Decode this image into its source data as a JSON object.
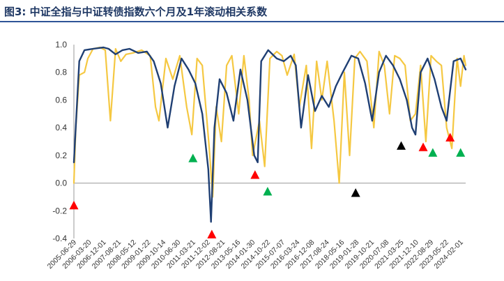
{
  "title": "图3: 中证全指与中证转债指数六个月及1年滚动相关系数",
  "chart_data": {
    "type": "line",
    "ylim": [
      -0.4,
      1.0
    ],
    "yticks": [
      "1.0",
      "0.8",
      "0.6",
      "0.4",
      "0.2",
      "0.0",
      "-0.2",
      "-0.4"
    ],
    "ytick_values": [
      1.0,
      0.8,
      0.6,
      0.4,
      0.2,
      0.0,
      -0.2,
      -0.4
    ],
    "x_start": "2005-06-29",
    "x_end": "2024-04-30",
    "xticks": [
      "2005-06-29",
      "2006-03-20",
      "2006-12-01",
      "2007-08-21",
      "2008-05-12",
      "2009-01-22",
      "2009-10-14",
      "2010-06-30",
      "2011-03-21",
      "2011-12-02",
      "2012-08-21",
      "2013-05-16",
      "2014-01-30",
      "2014-10-22",
      "2015-07-07",
      "2016-03-24",
      "2016-12-08",
      "2017-08-24",
      "2018-05-16",
      "2019-01-28",
      "2019-10-21",
      "2020-07-08",
      "2021-03-25",
      "2021-12-10",
      "2022-08-29",
      "2023-05-22",
      "2024-02-01"
    ],
    "grid": false,
    "legend": "none",
    "series": [
      {
        "color": "#1f3f73",
        "points": [
          [
            "2005-06-29",
            0.15
          ],
          [
            "2005-10-01",
            0.88
          ],
          [
            "2006-01-01",
            0.96
          ],
          [
            "2006-06-01",
            0.97
          ],
          [
            "2006-12-01",
            0.98
          ],
          [
            "2007-03-01",
            0.97
          ],
          [
            "2007-07-01",
            0.93
          ],
          [
            "2007-11-01",
            0.96
          ],
          [
            "2008-03-01",
            0.97
          ],
          [
            "2008-08-01",
            0.94
          ],
          [
            "2009-01-01",
            0.95
          ],
          [
            "2009-05-01",
            0.88
          ],
          [
            "2009-09-01",
            0.72
          ],
          [
            "2010-01-01",
            0.4
          ],
          [
            "2010-05-01",
            0.7
          ],
          [
            "2010-09-01",
            0.9
          ],
          [
            "2011-01-01",
            0.82
          ],
          [
            "2011-05-01",
            0.72
          ],
          [
            "2011-09-01",
            0.5
          ],
          [
            "2011-12-15",
            0.1
          ],
          [
            "2012-02-01",
            -0.28
          ],
          [
            "2012-04-01",
            0.4
          ],
          [
            "2012-07-01",
            0.75
          ],
          [
            "2012-11-01",
            0.65
          ],
          [
            "2013-03-01",
            0.45
          ],
          [
            "2013-07-01",
            0.82
          ],
          [
            "2013-11-01",
            0.6
          ],
          [
            "2014-03-01",
            0.2
          ],
          [
            "2014-05-01",
            0.15
          ],
          [
            "2014-07-01",
            0.88
          ],
          [
            "2014-11-01",
            0.96
          ],
          [
            "2015-04-01",
            0.9
          ],
          [
            "2015-08-01",
            0.88
          ],
          [
            "2015-12-01",
            0.92
          ],
          [
            "2016-03-01",
            0.85
          ],
          [
            "2016-06-01",
            0.4
          ],
          [
            "2016-10-01",
            0.78
          ],
          [
            "2017-02-01",
            0.52
          ],
          [
            "2017-06-01",
            0.63
          ],
          [
            "2017-10-01",
            0.55
          ],
          [
            "2018-02-01",
            0.7
          ],
          [
            "2018-06-01",
            0.8
          ],
          [
            "2018-11-01",
            0.92
          ],
          [
            "2019-03-01",
            0.9
          ],
          [
            "2019-07-01",
            0.72
          ],
          [
            "2019-11-01",
            0.45
          ],
          [
            "2020-03-01",
            0.8
          ],
          [
            "2020-07-01",
            0.92
          ],
          [
            "2020-11-01",
            0.85
          ],
          [
            "2021-03-01",
            0.75
          ],
          [
            "2021-07-01",
            0.6
          ],
          [
            "2021-10-01",
            0.4
          ],
          [
            "2021-12-01",
            0.35
          ],
          [
            "2022-03-01",
            0.8
          ],
          [
            "2022-07-01",
            0.9
          ],
          [
            "2022-11-01",
            0.75
          ],
          [
            "2023-03-01",
            0.55
          ],
          [
            "2023-06-01",
            0.45
          ],
          [
            "2023-10-01",
            0.88
          ],
          [
            "2024-02-01",
            0.9
          ],
          [
            "2024-04-30",
            0.82
          ]
        ]
      },
      {
        "color": "#f5c842",
        "points": [
          [
            "2005-06-29",
            0.0
          ],
          [
            "2005-08-01",
            0.4
          ],
          [
            "2005-10-01",
            0.78
          ],
          [
            "2006-01-01",
            0.8
          ],
          [
            "2006-03-01",
            0.9
          ],
          [
            "2006-06-01",
            0.97
          ],
          [
            "2006-10-01",
            0.98
          ],
          [
            "2007-01-01",
            0.96
          ],
          [
            "2007-04-01",
            0.45
          ],
          [
            "2007-07-01",
            0.97
          ],
          [
            "2007-10-01",
            0.88
          ],
          [
            "2008-01-01",
            0.93
          ],
          [
            "2008-05-01",
            0.94
          ],
          [
            "2008-10-01",
            0.96
          ],
          [
            "2009-03-01",
            0.92
          ],
          [
            "2009-06-01",
            0.55
          ],
          [
            "2009-08-01",
            0.45
          ],
          [
            "2009-12-01",
            0.9
          ],
          [
            "2010-04-01",
            0.75
          ],
          [
            "2010-08-01",
            0.92
          ],
          [
            "2010-12-01",
            0.55
          ],
          [
            "2011-03-01",
            0.35
          ],
          [
            "2011-06-01",
            0.9
          ],
          [
            "2011-09-01",
            0.85
          ],
          [
            "2012-01-01",
            0.25
          ],
          [
            "2012-03-01",
            -0.1
          ],
          [
            "2012-05-01",
            0.55
          ],
          [
            "2012-08-01",
            0.3
          ],
          [
            "2012-11-01",
            0.85
          ],
          [
            "2013-02-01",
            0.92
          ],
          [
            "2013-06-01",
            0.5
          ],
          [
            "2013-09-01",
            0.92
          ],
          [
            "2013-12-01",
            0.6
          ],
          [
            "2014-02-01",
            0.2
          ],
          [
            "2014-06-01",
            0.45
          ],
          [
            "2014-09-01",
            0.12
          ],
          [
            "2014-12-01",
            0.9
          ],
          [
            "2015-04-01",
            0.95
          ],
          [
            "2015-07-01",
            0.92
          ],
          [
            "2015-10-01",
            0.78
          ],
          [
            "2016-02-01",
            0.93
          ],
          [
            "2016-05-01",
            0.55
          ],
          [
            "2016-09-01",
            0.85
          ],
          [
            "2016-12-01",
            0.25
          ],
          [
            "2017-03-01",
            0.88
          ],
          [
            "2017-06-01",
            0.6
          ],
          [
            "2017-09-01",
            0.88
          ],
          [
            "2018-01-01",
            0.45
          ],
          [
            "2018-04-01",
            0.0
          ],
          [
            "2018-07-01",
            0.8
          ],
          [
            "2018-10-01",
            0.2
          ],
          [
            "2019-01-01",
            0.9
          ],
          [
            "2019-04-01",
            0.95
          ],
          [
            "2019-08-01",
            0.88
          ],
          [
            "2019-12-01",
            0.4
          ],
          [
            "2020-03-01",
            0.95
          ],
          [
            "2020-06-01",
            0.85
          ],
          [
            "2020-09-01",
            0.5
          ],
          [
            "2020-12-01",
            0.92
          ],
          [
            "2021-03-01",
            0.9
          ],
          [
            "2021-06-01",
            0.85
          ],
          [
            "2021-09-01",
            0.45
          ],
          [
            "2021-12-01",
            0.5
          ],
          [
            "2022-03-01",
            0.85
          ],
          [
            "2022-06-01",
            0.3
          ],
          [
            "2022-09-01",
            0.92
          ],
          [
            "2022-12-01",
            0.88
          ],
          [
            "2023-03-01",
            0.85
          ],
          [
            "2023-06-01",
            0.4
          ],
          [
            "2023-09-01",
            0.25
          ],
          [
            "2023-12-01",
            0.9
          ],
          [
            "2024-02-01",
            0.7
          ],
          [
            "2024-04-01",
            0.92
          ],
          [
            "2024-04-30",
            0.85
          ]
        ]
      }
    ],
    "markers": [
      {
        "date": "2005-06-29",
        "y": -0.16,
        "color": "#ff0000"
      },
      {
        "date": "2011-03-21",
        "y": 0.18,
        "color": "#00b050"
      },
      {
        "date": "2012-02-15",
        "y": -0.37,
        "color": "#ff0000"
      },
      {
        "date": "2014-03-15",
        "y": 0.06,
        "color": "#ff0000"
      },
      {
        "date": "2014-10-22",
        "y": -0.06,
        "color": "#00b050"
      },
      {
        "date": "2019-01-15",
        "y": -0.07,
        "color": "#000000"
      },
      {
        "date": "2021-03-25",
        "y": 0.27,
        "color": "#000000"
      },
      {
        "date": "2022-04-15",
        "y": 0.26,
        "color": "#ff0000"
      },
      {
        "date": "2022-10-01",
        "y": 0.22,
        "color": "#00b050"
      },
      {
        "date": "2023-08-01",
        "y": 0.33,
        "color": "#ff0000"
      },
      {
        "date": "2024-02-01",
        "y": 0.22,
        "color": "#00b050"
      }
    ]
  }
}
